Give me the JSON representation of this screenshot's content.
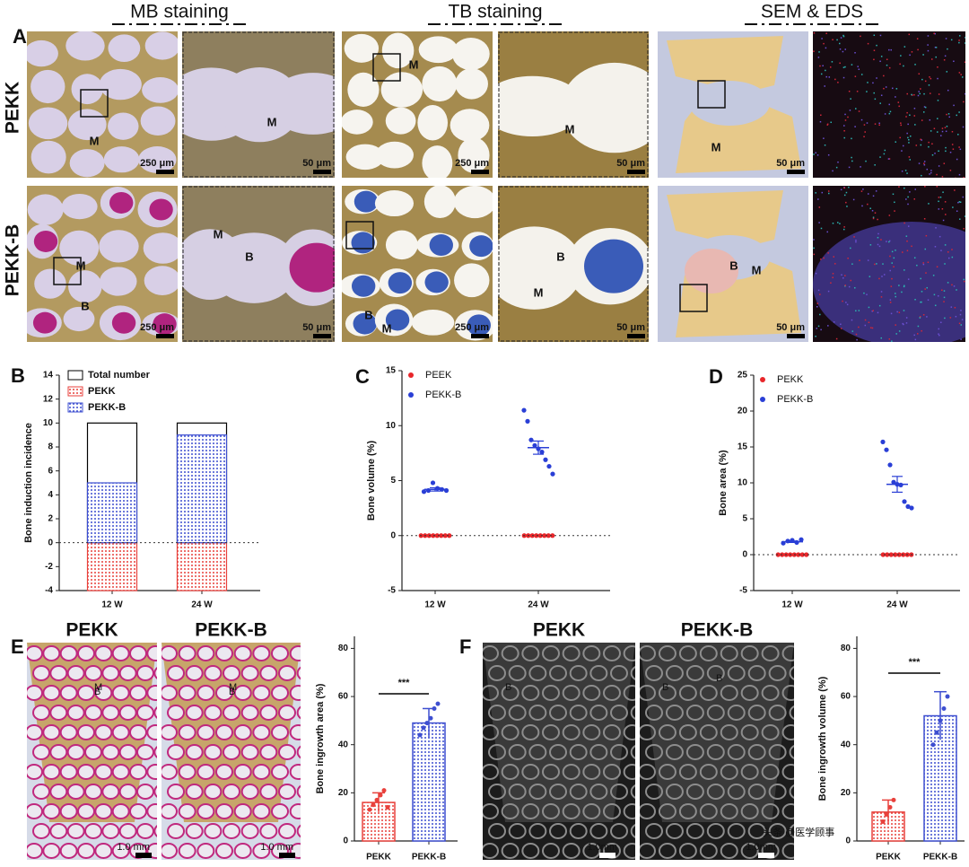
{
  "figure": {
    "panel_labels": [
      "A",
      "B",
      "C",
      "D",
      "E",
      "F"
    ],
    "panel_a": {
      "headers": [
        "MB staining",
        "TB staining",
        "SEM & EDS"
      ],
      "rows": [
        "PEKK",
        "PEKK-B"
      ],
      "tiles": [
        {
          "labels": [
            "M"
          ],
          "scale": "250 μm"
        },
        {
          "labels": [
            "M"
          ],
          "scale": "50 μm"
        },
        {
          "labels": [
            "M"
          ],
          "scale": "250 μm"
        },
        {
          "labels": [
            "M"
          ],
          "scale": "50 μm"
        },
        {
          "labels": [
            "M"
          ],
          "scale": "50 μm"
        },
        {
          "labels": [
            "M",
            "B"
          ],
          "scale": "250 μm"
        },
        {
          "labels": [
            "M",
            "B"
          ],
          "scale": "50 μm"
        },
        {
          "labels": [
            "B",
            "M"
          ],
          "scale": "250 μm"
        },
        {
          "labels": [
            "B",
            "M"
          ],
          "scale": "50 μm"
        },
        {
          "labels": [
            "B",
            "M"
          ],
          "scale": "50 μm"
        }
      ]
    },
    "panel_e": {
      "titles": [
        "PEKK",
        "PEKK-B"
      ],
      "labels": [
        [
          "M",
          "B"
        ],
        [
          "M",
          "B"
        ]
      ],
      "scale": "1.0 mm"
    },
    "panel_f": {
      "titles": [
        "PEKK",
        "PEKK-B"
      ],
      "labels": [
        [
          "B"
        ],
        [
          "B",
          "B"
        ]
      ],
      "scale": "1.0mm"
    },
    "watermark": "头条 @医学顾事"
  },
  "chart_data": [
    {
      "type": "bar",
      "ylabel": "Bone induction incidence",
      "categories": [
        "12 W",
        "24 W"
      ],
      "series": [
        {
          "name": "Total number",
          "color": "#000000",
          "hatch": false,
          "values": [
            10,
            10
          ]
        },
        {
          "name": "PEKK",
          "color": "#e8413c",
          "hatch": true,
          "values": [
            -4,
            -4
          ]
        },
        {
          "name": "PEKK-B",
          "color": "#3e4fd0",
          "hatch": true,
          "values": [
            5,
            9
          ]
        }
      ],
      "ylim": [
        -4,
        14
      ],
      "yticks": [
        -4,
        -2,
        0,
        2,
        4,
        6,
        8,
        10,
        12,
        14
      ],
      "zero_line": true,
      "legend": "upper left"
    },
    {
      "type": "strip",
      "ylabel": "Bone volume (%)",
      "categories": [
        "12 W",
        "24 W"
      ],
      "series": [
        {
          "name": "PEEK",
          "color": "#e8262a",
          "values": [
            [
              0,
              0,
              0,
              0,
              0,
              0,
              0,
              0
            ],
            [
              0,
              0,
              0,
              0,
              0,
              0,
              0,
              0
            ]
          ]
        },
        {
          "name": "PEKK-B",
          "color": "#2a3fd6",
          "values": [
            [
              4.0,
              4.1,
              4.8,
              4.3,
              4.2,
              4.1
            ],
            [
              11.4,
              10.4,
              8.7,
              8.2,
              7.9,
              7.6,
              6.9,
              6.3,
              5.6
            ]
          ],
          "means": [
            4.2,
            8.0
          ],
          "errors": [
            0.15,
            0.6
          ]
        }
      ],
      "ylim": [
        -5,
        15
      ],
      "yticks": [
        -5,
        0,
        5,
        10,
        15
      ],
      "zero_line": true,
      "legend": "upper left"
    },
    {
      "type": "strip",
      "ylabel": "Bone area (%)",
      "categories": [
        "12 W",
        "24 W"
      ],
      "series": [
        {
          "name": "PEKK",
          "color": "#e8262a",
          "values": [
            [
              0,
              0,
              0,
              0,
              0,
              0,
              0,
              0
            ],
            [
              0,
              0,
              0,
              0,
              0,
              0,
              0,
              0
            ]
          ]
        },
        {
          "name": "PEKK-B",
          "color": "#2a3fd6",
          "values": [
            [
              1.6,
              1.9,
              2.0,
              1.7,
              2.1
            ],
            [
              15.7,
              14.6,
              12.5,
              10.1,
              9.8,
              9.7,
              7.4,
              6.7,
              6.5
            ]
          ],
          "means": [
            1.8,
            9.8
          ],
          "errors": [
            0.1,
            1.1
          ]
        }
      ],
      "ylim": [
        -5,
        25
      ],
      "yticks": [
        -5,
        0,
        5,
        10,
        15,
        20,
        25
      ],
      "zero_line": true,
      "legend": "upper left"
    },
    {
      "type": "bar",
      "ylabel": "Bone ingrowth area (%)",
      "categories": [
        "PEKK",
        "PEKK-B"
      ],
      "values": [
        16,
        49
      ],
      "errors": [
        4,
        6
      ],
      "colors": [
        "#e8413c",
        "#3e4fd0"
      ],
      "points": [
        [
          13,
          15,
          17,
          19,
          21,
          14
        ],
        [
          44,
          47,
          49,
          51,
          55,
          57
        ]
      ],
      "significance": "***",
      "ylim": [
        0,
        85
      ],
      "yticks": [
        0,
        20,
        40,
        60,
        80
      ]
    },
    {
      "type": "bar",
      "ylabel": "Bone ingrowth volume (%)",
      "categories": [
        "PEKK",
        "PEKK-B"
      ],
      "values": [
        12,
        52
      ],
      "errors": [
        5,
        10
      ],
      "colors": [
        "#e8413c",
        "#3e4fd0"
      ],
      "points": [
        [
          8,
          11,
          14,
          17
        ],
        [
          40,
          45,
          50,
          55,
          60
        ]
      ],
      "significance": "***",
      "ylim": [
        0,
        85
      ],
      "yticks": [
        0,
        20,
        40,
        60,
        80
      ]
    }
  ]
}
